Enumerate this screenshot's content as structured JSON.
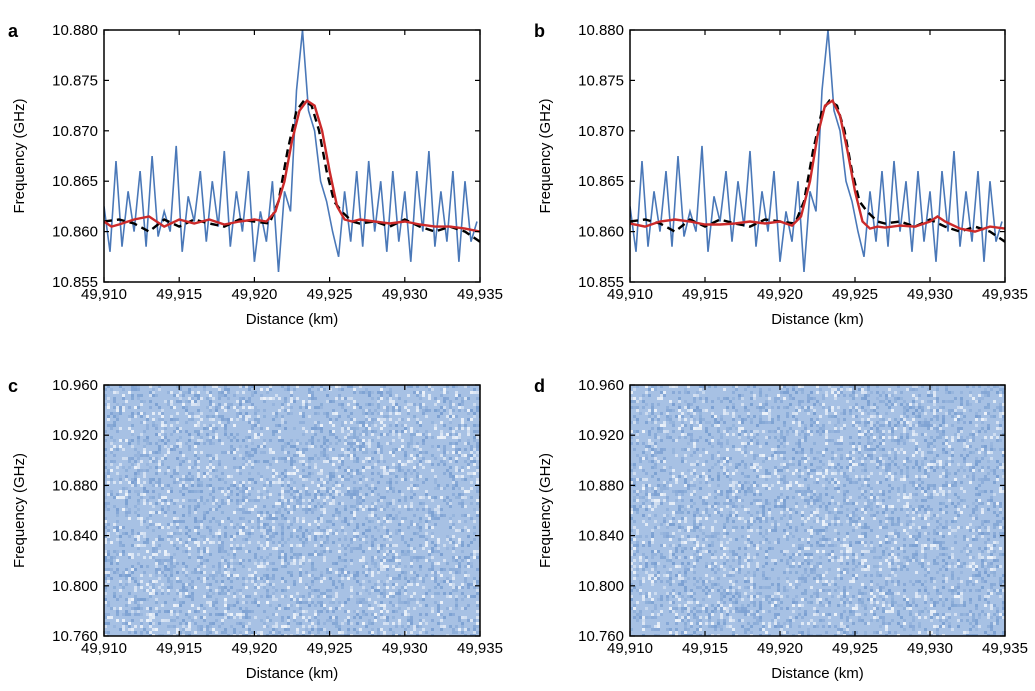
{
  "figure": {
    "panel_labels": [
      "a",
      "b",
      "c",
      "d"
    ],
    "colors": {
      "measured": "#4a78b8",
      "fit_dashed": "#000000",
      "fit_solid": "#cc2a2a",
      "map_base": "#a7c1e4"
    }
  },
  "chart_data": [
    {
      "panel": "a",
      "type": "line",
      "xlabel": "Distance (km)",
      "ylabel": "Frequency (GHz)",
      "xlim": [
        49910,
        49935
      ],
      "ylim": [
        10.855,
        10.88
      ],
      "xticks": [
        49910,
        49915,
        49920,
        49925,
        49930,
        49935
      ],
      "xtick_labels": [
        "49,910",
        "49,915",
        "49,920",
        "49,925",
        "49,930",
        "49,935"
      ],
      "yticks": [
        10.855,
        10.86,
        10.865,
        10.87,
        10.875,
        10.88
      ],
      "ytick_labels": [
        "10.855",
        "10.860",
        "10.865",
        "10.870",
        "10.875",
        "10.880"
      ],
      "grid": false,
      "series": [
        {
          "style": "solid-thin-blue",
          "x": [
            49910.0,
            49910.4,
            49910.8,
            49911.2,
            49911.6,
            49912.0,
            49912.4,
            49912.8,
            49913.2,
            49913.6,
            49914.0,
            49914.4,
            49914.8,
            49915.2,
            49915.6,
            49916.0,
            49916.4,
            49916.8,
            49917.2,
            49917.6,
            49918.0,
            49918.4,
            49918.8,
            49919.2,
            49919.6,
            49920.0,
            49920.4,
            49920.8,
            49921.2,
            49921.6,
            49922.0,
            49922.4,
            49922.8,
            49923.2,
            49923.6,
            49924.0,
            49924.4,
            49924.8,
            49925.2,
            49925.6,
            49926.0,
            49926.4,
            49926.8,
            49927.2,
            49927.6,
            49928.0,
            49928.4,
            49928.8,
            49929.2,
            49929.6,
            49930.0,
            49930.4,
            49930.8,
            49931.2,
            49931.6,
            49932.0,
            49932.4,
            49932.8,
            49933.2,
            49933.6,
            49934.0,
            49934.4,
            49934.8
          ],
          "y": [
            10.8625,
            10.858,
            10.867,
            10.8585,
            10.864,
            10.86,
            10.866,
            10.8585,
            10.8675,
            10.8595,
            10.862,
            10.86,
            10.8685,
            10.858,
            10.8635,
            10.861,
            10.866,
            10.859,
            10.865,
            10.8605,
            10.868,
            10.8585,
            10.864,
            10.86,
            10.866,
            10.857,
            10.862,
            10.859,
            10.865,
            10.856,
            10.864,
            10.862,
            10.874,
            10.88,
            10.872,
            10.87,
            10.865,
            10.863,
            10.86,
            10.8575,
            10.864,
            10.859,
            10.866,
            10.8585,
            10.867,
            10.86,
            10.865,
            10.858,
            10.866,
            10.859,
            10.864,
            10.857,
            10.866,
            10.86,
            10.868,
            10.8585,
            10.864,
            10.859,
            10.866,
            10.857,
            10.865,
            10.859,
            10.861
          ]
        },
        {
          "style": "dashed-black",
          "x": [
            49910,
            49911,
            49912,
            49913,
            49914,
            49915,
            49916,
            49917,
            49918,
            49919,
            49920,
            49921,
            49921.6,
            49922.2,
            49922.8,
            49923.3,
            49923.8,
            49924.3,
            49924.8,
            49925.3,
            49925.8,
            49926.5,
            49927,
            49928,
            49929,
            49930,
            49931,
            49932,
            49933,
            49934,
            49935
          ],
          "y": [
            10.861,
            10.8612,
            10.8608,
            10.86,
            10.8612,
            10.8605,
            10.8612,
            10.8608,
            10.8605,
            10.8612,
            10.861,
            10.8608,
            10.863,
            10.868,
            10.872,
            10.873,
            10.8725,
            10.87,
            10.866,
            10.863,
            10.862,
            10.861,
            10.8608,
            10.861,
            10.8605,
            10.8612,
            10.8605,
            10.86,
            10.8605,
            10.86,
            10.859
          ]
        },
        {
          "style": "solid-thick-red",
          "x": [
            49910,
            49910.5,
            49911,
            49912,
            49913,
            49914,
            49915,
            49916,
            49917,
            49918,
            49919,
            49920,
            49920.8,
            49921.4,
            49922,
            49922.5,
            49923,
            49923.5,
            49924,
            49924.5,
            49925,
            49925.5,
            49926,
            49926.5,
            49927,
            49928,
            49929,
            49930,
            49931,
            49932,
            49933,
            49934,
            49935
          ],
          "y": [
            10.861,
            10.8605,
            10.8607,
            10.8612,
            10.8615,
            10.8605,
            10.8612,
            10.8608,
            10.8612,
            10.8607,
            10.861,
            10.8612,
            10.861,
            10.862,
            10.865,
            10.869,
            10.872,
            10.873,
            10.8725,
            10.87,
            10.866,
            10.8625,
            10.8612,
            10.861,
            10.8612,
            10.861,
            10.8608,
            10.861,
            10.8607,
            10.8605,
            10.8605,
            10.8603,
            10.86
          ]
        }
      ]
    },
    {
      "panel": "b",
      "type": "line",
      "xlabel": "Distance (km)",
      "ylabel": "Frequency (GHz)",
      "xlim": [
        49910,
        49935
      ],
      "ylim": [
        10.855,
        10.88
      ],
      "xticks": [
        49910,
        49915,
        49920,
        49925,
        49930,
        49935
      ],
      "xtick_labels": [
        "49,910",
        "49,915",
        "49,920",
        "49,925",
        "49,930",
        "49,935"
      ],
      "yticks": [
        10.855,
        10.86,
        10.865,
        10.87,
        10.875,
        10.88
      ],
      "ytick_labels": [
        "10.855",
        "10.860",
        "10.865",
        "10.870",
        "10.875",
        "10.880"
      ],
      "grid": false,
      "series": [
        {
          "style": "solid-thin-blue",
          "x": [
            49910.0,
            49910.4,
            49910.8,
            49911.2,
            49911.6,
            49912.0,
            49912.4,
            49912.8,
            49913.2,
            49913.6,
            49914.0,
            49914.4,
            49914.8,
            49915.2,
            49915.6,
            49916.0,
            49916.4,
            49916.8,
            49917.2,
            49917.6,
            49918.0,
            49918.4,
            49918.8,
            49919.2,
            49919.6,
            49920.0,
            49920.4,
            49920.8,
            49921.2,
            49921.6,
            49922.0,
            49922.4,
            49922.8,
            49923.2,
            49923.6,
            49924.0,
            49924.4,
            49924.8,
            49925.2,
            49925.6,
            49926.0,
            49926.4,
            49926.8,
            49927.2,
            49927.6,
            49928.0,
            49928.4,
            49928.8,
            49929.2,
            49929.6,
            49930.0,
            49930.4,
            49930.8,
            49931.2,
            49931.6,
            49932.0,
            49932.4,
            49932.8,
            49933.2,
            49933.6,
            49934.0,
            49934.4,
            49934.8
          ],
          "y": [
            10.8625,
            10.858,
            10.867,
            10.8585,
            10.864,
            10.86,
            10.866,
            10.8585,
            10.8675,
            10.8595,
            10.862,
            10.86,
            10.8685,
            10.858,
            10.8635,
            10.861,
            10.866,
            10.859,
            10.865,
            10.8605,
            10.868,
            10.8585,
            10.864,
            10.86,
            10.866,
            10.857,
            10.862,
            10.859,
            10.865,
            10.856,
            10.864,
            10.862,
            10.874,
            10.88,
            10.872,
            10.87,
            10.865,
            10.863,
            10.86,
            10.8575,
            10.864,
            10.859,
            10.866,
            10.8585,
            10.867,
            10.86,
            10.865,
            10.858,
            10.866,
            10.859,
            10.864,
            10.857,
            10.866,
            10.86,
            10.868,
            10.8585,
            10.864,
            10.859,
            10.866,
            10.857,
            10.865,
            10.859,
            10.861
          ]
        },
        {
          "style": "dashed-black",
          "x": [
            49910,
            49911,
            49912,
            49913,
            49914,
            49915,
            49916,
            49917,
            49918,
            49919,
            49920,
            49921,
            49921.6,
            49922.2,
            49922.8,
            49923.3,
            49923.8,
            49924.3,
            49924.8,
            49925.3,
            49925.8,
            49926.5,
            49927,
            49928,
            49929,
            49930,
            49931,
            49932,
            49933,
            49934,
            49935
          ],
          "y": [
            10.861,
            10.8612,
            10.8608,
            10.86,
            10.8612,
            10.8605,
            10.8612,
            10.8608,
            10.8605,
            10.8612,
            10.861,
            10.8608,
            10.863,
            10.868,
            10.872,
            10.873,
            10.8725,
            10.87,
            10.866,
            10.863,
            10.862,
            10.861,
            10.8608,
            10.861,
            10.8605,
            10.8612,
            10.8605,
            10.86,
            10.8605,
            10.86,
            10.859
          ]
        },
        {
          "style": "solid-thick-red",
          "x": [
            49910,
            49911,
            49912,
            49913,
            49914,
            49915,
            49916,
            49917,
            49918,
            49919,
            49920,
            49920.8,
            49921.4,
            49922,
            49922.5,
            49923,
            49923.5,
            49924,
            49924.5,
            49925,
            49925.5,
            49926,
            49926.5,
            49927,
            49928,
            49929,
            49930,
            49930.5,
            49931,
            49932,
            49933,
            49934,
            49935
          ],
          "y": [
            10.8608,
            10.8605,
            10.861,
            10.8612,
            10.861,
            10.8607,
            10.8607,
            10.8608,
            10.861,
            10.8608,
            10.861,
            10.8606,
            10.8615,
            10.865,
            10.8695,
            10.8725,
            10.873,
            10.8715,
            10.868,
            10.864,
            10.861,
            10.8603,
            10.8605,
            10.8604,
            10.8606,
            10.8605,
            10.861,
            10.8615,
            10.861,
            10.8603,
            10.86,
            10.8605,
            10.8603
          ]
        }
      ]
    },
    {
      "panel": "c",
      "type": "heatmap",
      "xlabel": "Distance (km)",
      "ylabel": "Frequency (GHz)",
      "xlim": [
        49910,
        49935
      ],
      "ylim": [
        10.76,
        10.96
      ],
      "xticks": [
        49910,
        49915,
        49920,
        49925,
        49930,
        49935
      ],
      "xtick_labels": [
        "49,910",
        "49,915",
        "49,920",
        "49,925",
        "49,930",
        "49,935"
      ],
      "yticks": [
        10.76,
        10.8,
        10.84,
        10.88,
        10.92,
        10.96
      ],
      "ytick_labels": [
        "10.760",
        "10.800",
        "10.840",
        "10.880",
        "10.920",
        "10.960"
      ],
      "grid": false,
      "description_values": "noise-like uniform field"
    },
    {
      "panel": "d",
      "type": "heatmap",
      "xlabel": "Distance (km)",
      "ylabel": "Frequency (GHz)",
      "xlim": [
        49910,
        49935
      ],
      "ylim": [
        10.76,
        10.96
      ],
      "xticks": [
        49910,
        49915,
        49920,
        49925,
        49930,
        49935
      ],
      "xtick_labels": [
        "49,910",
        "49,915",
        "49,920",
        "49,925",
        "49,930",
        "49,935"
      ],
      "yticks": [
        10.76,
        10.8,
        10.84,
        10.88,
        10.92,
        10.96
      ],
      "ytick_labels": [
        "10.760",
        "10.800",
        "10.840",
        "10.880",
        "10.920",
        "10.960"
      ],
      "grid": false,
      "description_values": "noise-like uniform field"
    }
  ]
}
